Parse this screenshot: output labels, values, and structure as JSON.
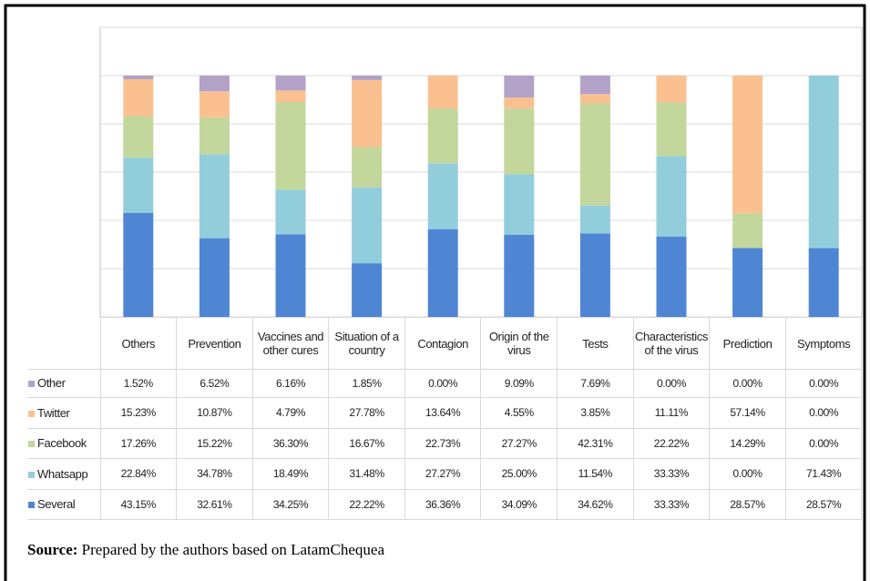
{
  "chart_data": {
    "type": "stacked_bar",
    "categories": [
      "Others",
      "Prevention",
      "Vaccines and other cures",
      "Situation of a country",
      "Contagion",
      "Origin of the virus",
      "Tests",
      "Characteristics of the virus",
      "Prediction",
      "Symptoms"
    ],
    "series": [
      {
        "name": "Several",
        "color": "#4f86d4",
        "values": [
          43.15,
          32.61,
          34.25,
          22.22,
          36.36,
          34.09,
          34.62,
          33.33,
          28.57,
          28.57
        ],
        "value_labels": [
          "43.15%",
          "32.61%",
          "34.25%",
          "22.22%",
          "36.36%",
          "34.09%",
          "34.62%",
          "33.33%",
          "28.57%",
          "28.57%"
        ]
      },
      {
        "name": "Whatsapp",
        "color": "#92cddc",
        "values": [
          22.84,
          34.78,
          18.49,
          31.48,
          27.27,
          25.0,
          11.54,
          33.33,
          0.0,
          71.43
        ],
        "value_labels": [
          "22.84%",
          "34.78%",
          "18.49%",
          "31.48%",
          "27.27%",
          "25.00%",
          "11.54%",
          "33.33%",
          "0.00%",
          "71.43%"
        ]
      },
      {
        "name": "Facebook",
        "color": "#c3d69b",
        "values": [
          17.26,
          15.22,
          36.3,
          16.67,
          22.73,
          27.27,
          42.31,
          22.22,
          14.29,
          0.0
        ],
        "value_labels": [
          "17.26%",
          "15.22%",
          "36.30%",
          "16.67%",
          "22.73%",
          "27.27%",
          "42.31%",
          "22.22%",
          "14.29%",
          "0.00%"
        ]
      },
      {
        "name": "Twitter",
        "color": "#fac090",
        "values": [
          15.23,
          10.87,
          4.79,
          27.78,
          13.64,
          4.55,
          3.85,
          11.11,
          57.14,
          0.0
        ],
        "value_labels": [
          "15.23%",
          "10.87%",
          "4.79%",
          "27.78%",
          "13.64%",
          "4.55%",
          "3.85%",
          "11.11%",
          "57.14%",
          "0.00%"
        ]
      },
      {
        "name": "Other",
        "color": "#b3a2c7",
        "values": [
          1.52,
          6.52,
          6.16,
          1.85,
          0.0,
          9.09,
          7.69,
          0.0,
          0.0,
          0.0
        ],
        "value_labels": [
          "1.52%",
          "6.52%",
          "6.16%",
          "1.85%",
          "0.00%",
          "9.09%",
          "7.69%",
          "0.00%",
          "0.00%",
          "0.00%"
        ]
      }
    ],
    "ylim": [
      0,
      120
    ],
    "yticks": [
      0,
      20,
      40,
      60,
      80,
      100,
      120
    ],
    "grid": true,
    "source_label": "Source:",
    "source": "Prepared by the authors based on LatamChequea"
  }
}
